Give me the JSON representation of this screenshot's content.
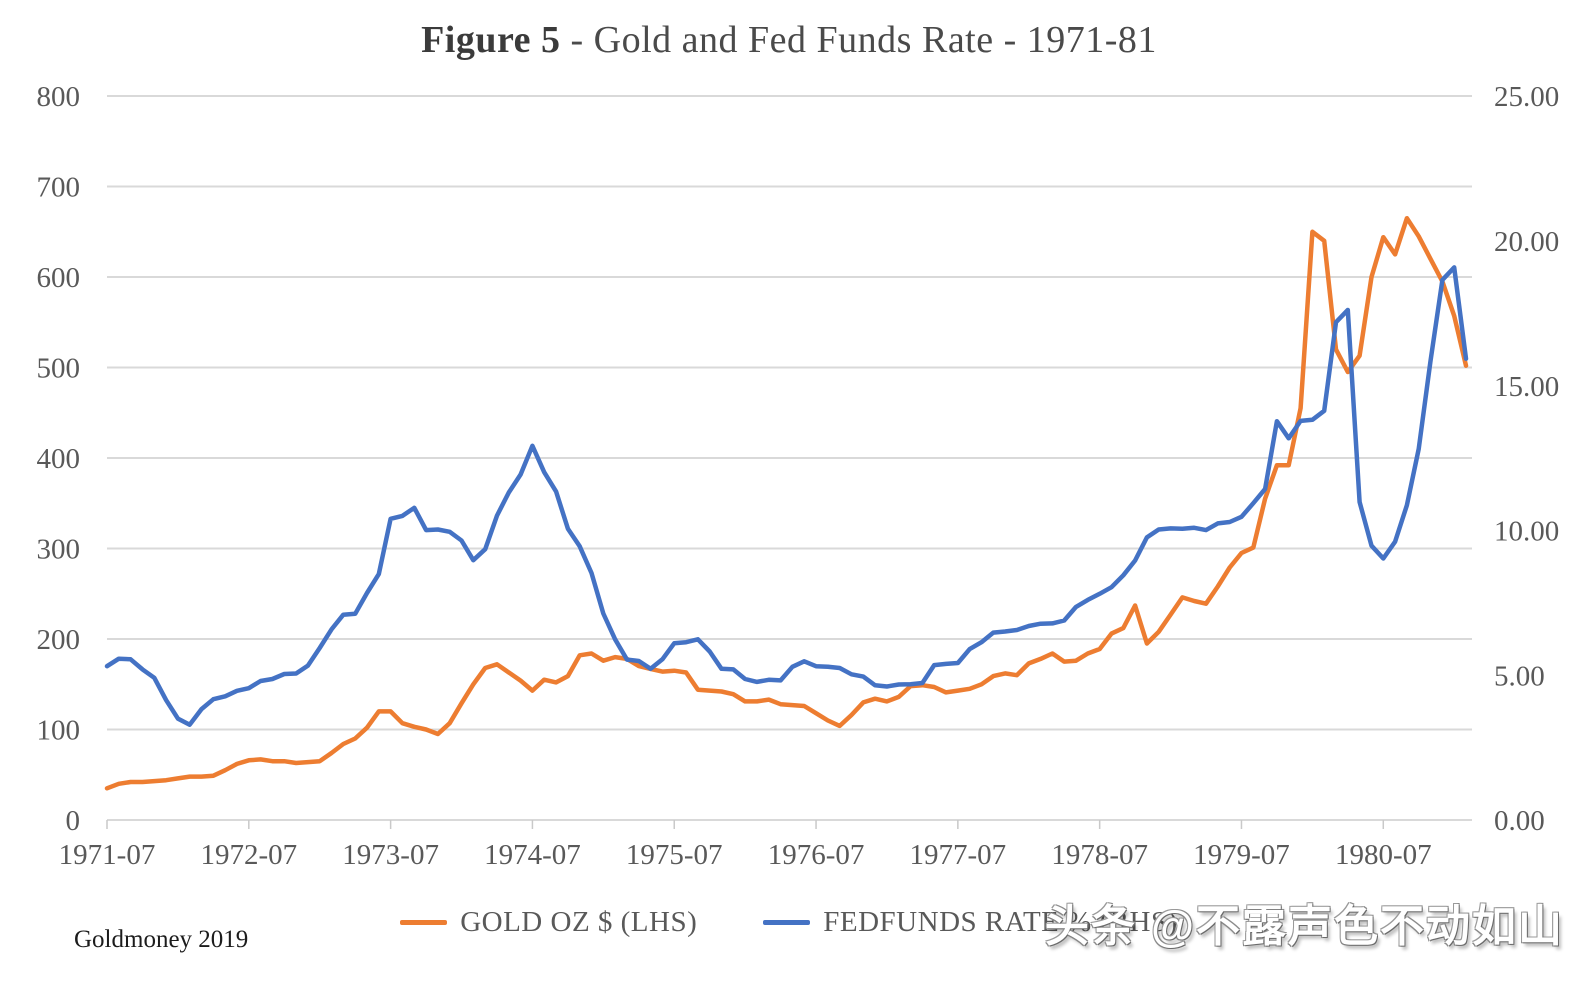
{
  "title": {
    "prefix": "Figure 5",
    "rest": " - Gold and Fed Funds Rate - 1971-81"
  },
  "source_note": "Goldmoney 2019",
  "watermark": "头条 @不露声色不动如山",
  "legend": [
    {
      "label": "GOLD OZ $ (LHS)",
      "color": "#ED7D31"
    },
    {
      "label": "FEDFUNDS RATE % (RHS)",
      "color": "#4472C4"
    }
  ],
  "colors": {
    "grid": "#d9d9d9",
    "tick_mark": "#c9c9c9",
    "tick_text": "#595959",
    "background": "#ffffff",
    "gold": "#ED7D31",
    "fedfunds": "#4472C4"
  },
  "chart_data": {
    "type": "line",
    "title": "Figure 5 - Gold and Fed Funds Rate - 1971-81",
    "xlabel": "",
    "ylabel_left": "",
    "ylabel_right": "",
    "grid": true,
    "legend_position": "bottom",
    "x": [
      "1971-07",
      "1971-08",
      "1971-09",
      "1971-10",
      "1971-11",
      "1971-12",
      "1972-01",
      "1972-02",
      "1972-03",
      "1972-04",
      "1972-05",
      "1972-06",
      "1972-07",
      "1972-08",
      "1972-09",
      "1972-10",
      "1972-11",
      "1972-12",
      "1973-01",
      "1973-02",
      "1973-03",
      "1973-04",
      "1973-05",
      "1973-06",
      "1973-07",
      "1973-08",
      "1973-09",
      "1973-10",
      "1973-11",
      "1973-12",
      "1974-01",
      "1974-02",
      "1974-03",
      "1974-04",
      "1974-05",
      "1974-06",
      "1974-07",
      "1974-08",
      "1974-09",
      "1974-10",
      "1974-11",
      "1974-12",
      "1975-01",
      "1975-02",
      "1975-03",
      "1975-04",
      "1975-05",
      "1975-06",
      "1975-07",
      "1975-08",
      "1975-09",
      "1975-10",
      "1975-11",
      "1975-12",
      "1976-01",
      "1976-02",
      "1976-03",
      "1976-04",
      "1976-05",
      "1976-06",
      "1976-07",
      "1976-08",
      "1976-09",
      "1976-10",
      "1976-11",
      "1976-12",
      "1977-01",
      "1977-02",
      "1977-03",
      "1977-04",
      "1977-05",
      "1977-06",
      "1977-07",
      "1977-08",
      "1977-09",
      "1977-10",
      "1977-11",
      "1977-12",
      "1978-01",
      "1978-02",
      "1978-03",
      "1978-04",
      "1978-05",
      "1978-06",
      "1978-07",
      "1978-08",
      "1978-09",
      "1978-10",
      "1978-11",
      "1978-12",
      "1979-01",
      "1979-02",
      "1979-03",
      "1979-04",
      "1979-05",
      "1979-06",
      "1979-07",
      "1979-08",
      "1979-09",
      "1979-10",
      "1979-11",
      "1979-12",
      "1980-01",
      "1980-02",
      "1980-03",
      "1980-04",
      "1980-05",
      "1980-06",
      "1980-07",
      "1980-08",
      "1980-09",
      "1980-10",
      "1980-11",
      "1980-12",
      "1981-01",
      "1981-02"
    ],
    "x_tick_labels": [
      "1971-07",
      "1972-07",
      "1973-07",
      "1974-07",
      "1975-07",
      "1976-07",
      "1977-07",
      "1978-07",
      "1979-07",
      "1980-07"
    ],
    "x_tick_every_n_points": 12,
    "left_axis": {
      "min": 0,
      "max": 800,
      "step": 100,
      "tick_labels": [
        "0",
        "100",
        "200",
        "300",
        "400",
        "500",
        "600",
        "700",
        "800"
      ]
    },
    "right_axis": {
      "min": 0,
      "max": 25,
      "step": 5,
      "tick_labels": [
        "0.00",
        "5.00",
        "10.00",
        "15.00",
        "20.00",
        "25.00"
      ]
    },
    "series": [
      {
        "name": "GOLD OZ $ (LHS)",
        "axis": "left",
        "color": "#ED7D31",
        "values": [
          35,
          40,
          42,
          42,
          43,
          44,
          46,
          48,
          48,
          49,
          55,
          62,
          66,
          67,
          65,
          65,
          63,
          64,
          65,
          74,
          84,
          90,
          102,
          120,
          120,
          107,
          103,
          100,
          95,
          107,
          129,
          150,
          168,
          172,
          163,
          154,
          143,
          155,
          152,
          159,
          182,
          184,
          176,
          180,
          178,
          170,
          167,
          164,
          165,
          163,
          144,
          143,
          142,
          139,
          131,
          131,
          133,
          128,
          127,
          126,
          118,
          110,
          104,
          116,
          130,
          134,
          131,
          136,
          148,
          149,
          147,
          141,
          143,
          145,
          150,
          159,
          162,
          160,
          173,
          178,
          184,
          175,
          176,
          184,
          189,
          206,
          212,
          237,
          195,
          208,
          227,
          246,
          242,
          239,
          258,
          279,
          295,
          301,
          355,
          392,
          392,
          455,
          650,
          640,
          520,
          495,
          513,
          600,
          644,
          625,
          665,
          645,
          620,
          595,
          557,
          502
        ]
      },
      {
        "name": "FEDFUNDS RATE % (RHS)",
        "axis": "right",
        "color": "#4472C4",
        "values": [
          5.31,
          5.57,
          5.55,
          5.2,
          4.91,
          4.14,
          3.5,
          3.29,
          3.83,
          4.17,
          4.27,
          4.46,
          4.55,
          4.8,
          4.87,
          5.04,
          5.06,
          5.33,
          5.94,
          6.58,
          7.09,
          7.12,
          7.84,
          8.49,
          10.4,
          10.5,
          10.78,
          10.01,
          10.03,
          9.95,
          9.65,
          8.97,
          9.35,
          10.51,
          11.31,
          11.93,
          12.92,
          12.01,
          11.34,
          10.06,
          9.45,
          8.53,
          7.13,
          6.24,
          5.54,
          5.49,
          5.22,
          5.55,
          6.1,
          6.14,
          6.24,
          5.82,
          5.22,
          5.2,
          4.87,
          4.77,
          4.84,
          4.82,
          5.29,
          5.48,
          5.31,
          5.29,
          5.25,
          5.03,
          4.95,
          4.65,
          4.61,
          4.68,
          4.69,
          4.73,
          5.35,
          5.39,
          5.42,
          5.9,
          6.14,
          6.47,
          6.51,
          6.56,
          6.7,
          6.78,
          6.79,
          6.89,
          7.36,
          7.6,
          7.81,
          8.04,
          8.45,
          8.96,
          9.76,
          10.03,
          10.07,
          10.06,
          10.09,
          10.01,
          10.24,
          10.29,
          10.47,
          10.94,
          11.43,
          13.77,
          13.18,
          13.78,
          13.82,
          14.13,
          17.19,
          17.61,
          10.98,
          9.47,
          9.03,
          9.61,
          10.87,
          12.81,
          15.85,
          18.65,
          19.08,
          15.93
        ]
      }
    ]
  }
}
